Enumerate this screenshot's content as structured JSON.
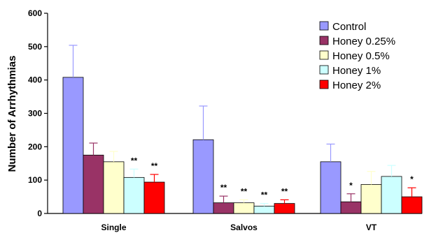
{
  "chart_data": {
    "type": "bar",
    "title": "",
    "xlabel": "",
    "ylabel": "Number of Arrhythmias",
    "ylim": [
      0,
      600
    ],
    "yticks": [
      0,
      100,
      200,
      300,
      400,
      500,
      600
    ],
    "grid": false,
    "legend_position": "top-right",
    "categories": [
      "Single",
      "Salvos",
      "VT"
    ],
    "series": [
      {
        "name": "Control",
        "color": "#9999ff",
        "values": [
          408,
          221,
          155
        ],
        "errors": [
          96,
          101,
          53
        ],
        "sig": [
          "",
          "",
          ""
        ]
      },
      {
        "name": "Honey 0.25%",
        "color": "#993366",
        "values": [
          175,
          32,
          35
        ],
        "errors": [
          36,
          20,
          24
        ],
        "sig": [
          "",
          "**",
          "*"
        ]
      },
      {
        "name": "Honey 0.5%",
        "color": "#ffffcc",
        "values": [
          155,
          32,
          87
        ],
        "errors": [
          31,
          9,
          39
        ],
        "sig": [
          "",
          "**",
          ""
        ]
      },
      {
        "name": "Honey 1%",
        "color": "#ccffff",
        "values": [
          108,
          22,
          111
        ],
        "errors": [
          25,
          8,
          33
        ],
        "sig": [
          "**",
          "**",
          ""
        ]
      },
      {
        "name": "Honey 2%",
        "color": "#ff0000",
        "values": [
          94,
          30,
          50
        ],
        "errors": [
          23,
          11,
          27
        ],
        "sig": [
          "**",
          "**",
          "*"
        ]
      }
    ]
  }
}
